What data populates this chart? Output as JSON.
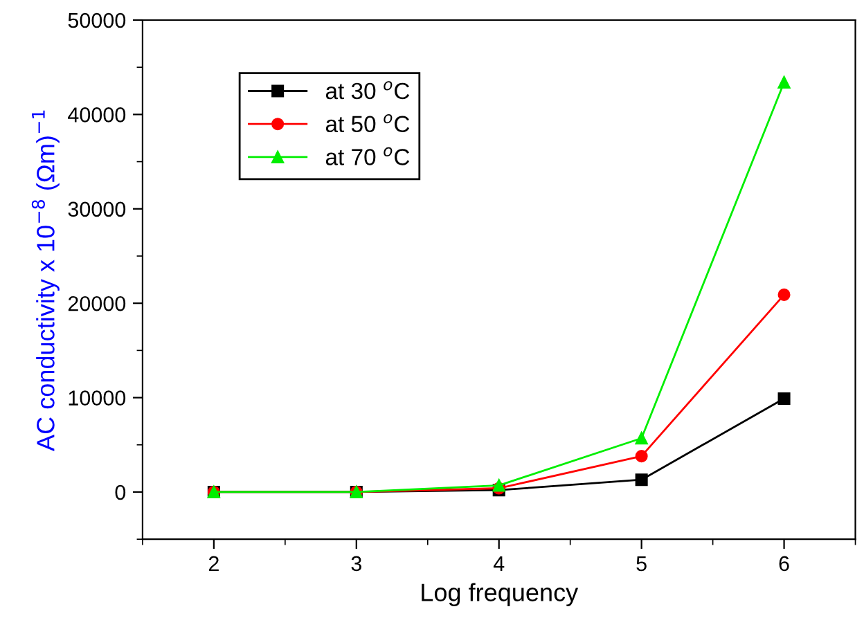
{
  "chart_data": {
    "type": "line",
    "xlabel": "Log frequency",
    "ylabel": "AC conductivity x 10$^{−8}$ (Ωm)$^{−1}$",
    "x": [
      2,
      3,
      4,
      5,
      6
    ],
    "series": [
      {
        "name": "at 30 $^{o}$C",
        "color": "#000000",
        "marker": "square",
        "values": [
          0,
          0,
          200,
          1300,
          9900
        ]
      },
      {
        "name": "at 50 $^{o}$C",
        "color": "#ff0000",
        "marker": "circle",
        "values": [
          0,
          0,
          400,
          3800,
          20900
        ]
      },
      {
        "name": "at 70 $^{o}$C",
        "color": "#00ee00",
        "marker": "triangle",
        "values": [
          0,
          0,
          700,
          5700,
          43400
        ]
      }
    ],
    "xlim": [
      1.5,
      6.5
    ],
    "xticks": [
      2,
      3,
      4,
      5,
      6
    ],
    "ylim": [
      -5000,
      50000
    ],
    "yticks": [
      0,
      10000,
      20000,
      30000,
      40000,
      50000
    ],
    "grid": false,
    "legend": "top left",
    "line_style": "solid"
  }
}
